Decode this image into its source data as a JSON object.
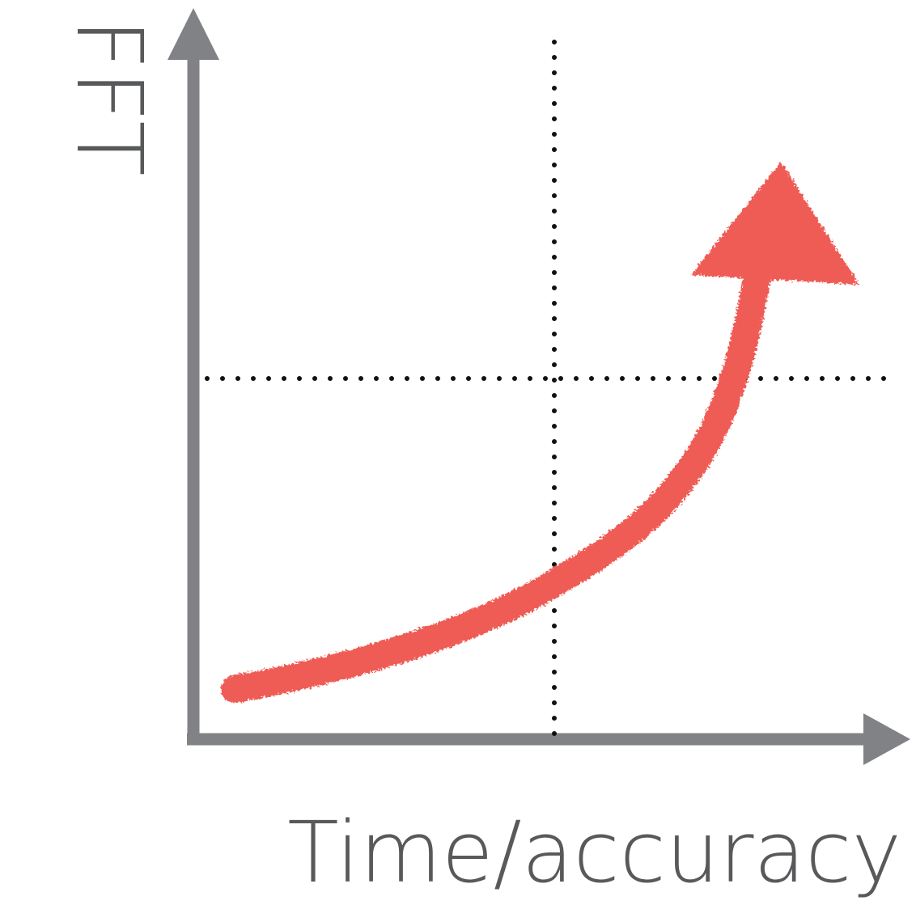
{
  "diagram": {
    "y_axis_label": "FFT",
    "x_axis_label": "Time/accuracy",
    "colors": {
      "axis": "#808285",
      "label": "#58595b",
      "guide": "#111111",
      "curve": "#ee5c55"
    },
    "icons": {
      "y_arrowhead": "arrow-up",
      "x_arrowhead": "arrow-right",
      "curve_arrowhead": "arrow-up-right"
    }
  }
}
